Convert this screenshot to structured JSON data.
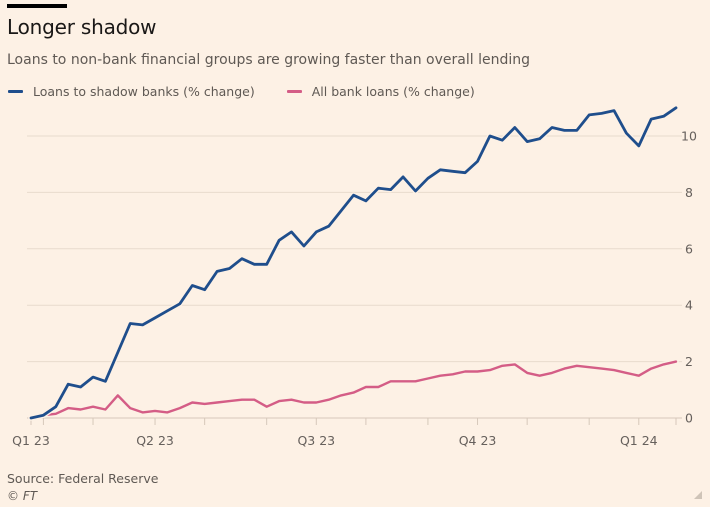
{
  "header": {
    "title": "Longer shadow",
    "subtitle": "Loans to non-bank financial groups are growing faster than overall lending"
  },
  "footer": {
    "source": "Source: Federal Reserve",
    "copyright": "© FT"
  },
  "colors": {
    "background": "#fdf1e5",
    "shadow_banks": "#1f4e8c",
    "all_bank_loans": "#d45d86",
    "grid": "#e8dbcd",
    "axis": "#d6c8ba"
  },
  "chart_data": {
    "type": "line",
    "title": "Longer shadow",
    "subtitle": "Loans to non-bank financial groups are growing faster than overall lending",
    "xlabel": "",
    "ylabel": "% change",
    "y_axis_side": "right",
    "ylim": [
      0,
      11.5
    ],
    "yticks": [
      0,
      2,
      4,
      6,
      8,
      10
    ],
    "xlim": [
      0,
      52
    ],
    "xticks": [
      {
        "x": 0,
        "label": "Q1 23"
      },
      {
        "x": 1,
        "label": ""
      },
      {
        "x": 5,
        "label": ""
      },
      {
        "x": 10,
        "label": "Q2 23"
      },
      {
        "x": 14,
        "label": ""
      },
      {
        "x": 19,
        "label": ""
      },
      {
        "x": 23,
        "label": "Q3 23"
      },
      {
        "x": 27,
        "label": ""
      },
      {
        "x": 32,
        "label": ""
      },
      {
        "x": 36,
        "label": "Q4 23"
      },
      {
        "x": 40,
        "label": ""
      },
      {
        "x": 45,
        "label": ""
      },
      {
        "x": 49,
        "label": "Q1 24"
      },
      {
        "x": 52,
        "label": ""
      }
    ],
    "grid": true,
    "legend_position": "top-left",
    "series": [
      {
        "name": "Loans to shadow banks (% change)",
        "color": "#1f4e8c",
        "x": [
          0,
          1,
          2,
          3,
          4,
          5,
          6,
          8,
          9,
          10,
          11,
          12,
          13,
          14,
          15,
          16,
          17,
          18,
          19,
          20,
          21,
          22,
          23,
          24,
          25,
          26,
          27,
          28,
          29,
          30,
          31,
          32,
          33,
          34,
          35,
          36,
          37,
          38,
          39,
          40,
          41,
          42,
          43,
          44,
          45,
          46,
          47,
          48,
          49,
          50,
          51,
          52
        ],
        "values": [
          0,
          0.1,
          0.4,
          1.2,
          1.1,
          1.45,
          1.3,
          3.35,
          3.3,
          3.55,
          3.8,
          4.05,
          4.7,
          4.55,
          5.2,
          5.3,
          5.65,
          5.45,
          5.45,
          6.3,
          6.6,
          6.1,
          6.6,
          6.8,
          7.35,
          7.9,
          7.7,
          8.15,
          8.1,
          8.55,
          8.05,
          8.5,
          8.8,
          8.75,
          8.7,
          9.1,
          10.0,
          9.85,
          10.3,
          9.8,
          9.9,
          10.3,
          10.2,
          10.2,
          10.75,
          10.8,
          10.9,
          10.1,
          9.65,
          10.6,
          10.7,
          11.0
        ]
      },
      {
        "name": "All bank loans (% change)",
        "color": "#d45d86",
        "x": [
          1,
          2,
          3,
          4,
          5,
          6,
          7,
          8,
          9,
          10,
          11,
          12,
          13,
          14,
          15,
          16,
          17,
          18,
          19,
          20,
          21,
          22,
          23,
          24,
          25,
          26,
          27,
          28,
          29,
          30,
          31,
          32,
          33,
          34,
          35,
          36,
          37,
          38,
          39,
          40,
          41,
          42,
          43,
          44,
          45,
          46,
          47,
          48,
          49,
          50,
          51,
          52
        ],
        "values": [
          0.1,
          0.15,
          0.35,
          0.3,
          0.4,
          0.3,
          0.8,
          0.35,
          0.2,
          0.25,
          0.2,
          0.35,
          0.55,
          0.5,
          0.55,
          0.6,
          0.65,
          0.65,
          0.4,
          0.6,
          0.65,
          0.55,
          0.55,
          0.65,
          0.8,
          0.9,
          1.1,
          1.1,
          1.3,
          1.3,
          1.3,
          1.4,
          1.5,
          1.55,
          1.65,
          1.65,
          1.7,
          1.85,
          1.9,
          1.6,
          1.5,
          1.6,
          1.75,
          1.85,
          1.8,
          1.75,
          1.7,
          1.6,
          1.5,
          1.75,
          1.9,
          2.0
        ]
      }
    ]
  }
}
